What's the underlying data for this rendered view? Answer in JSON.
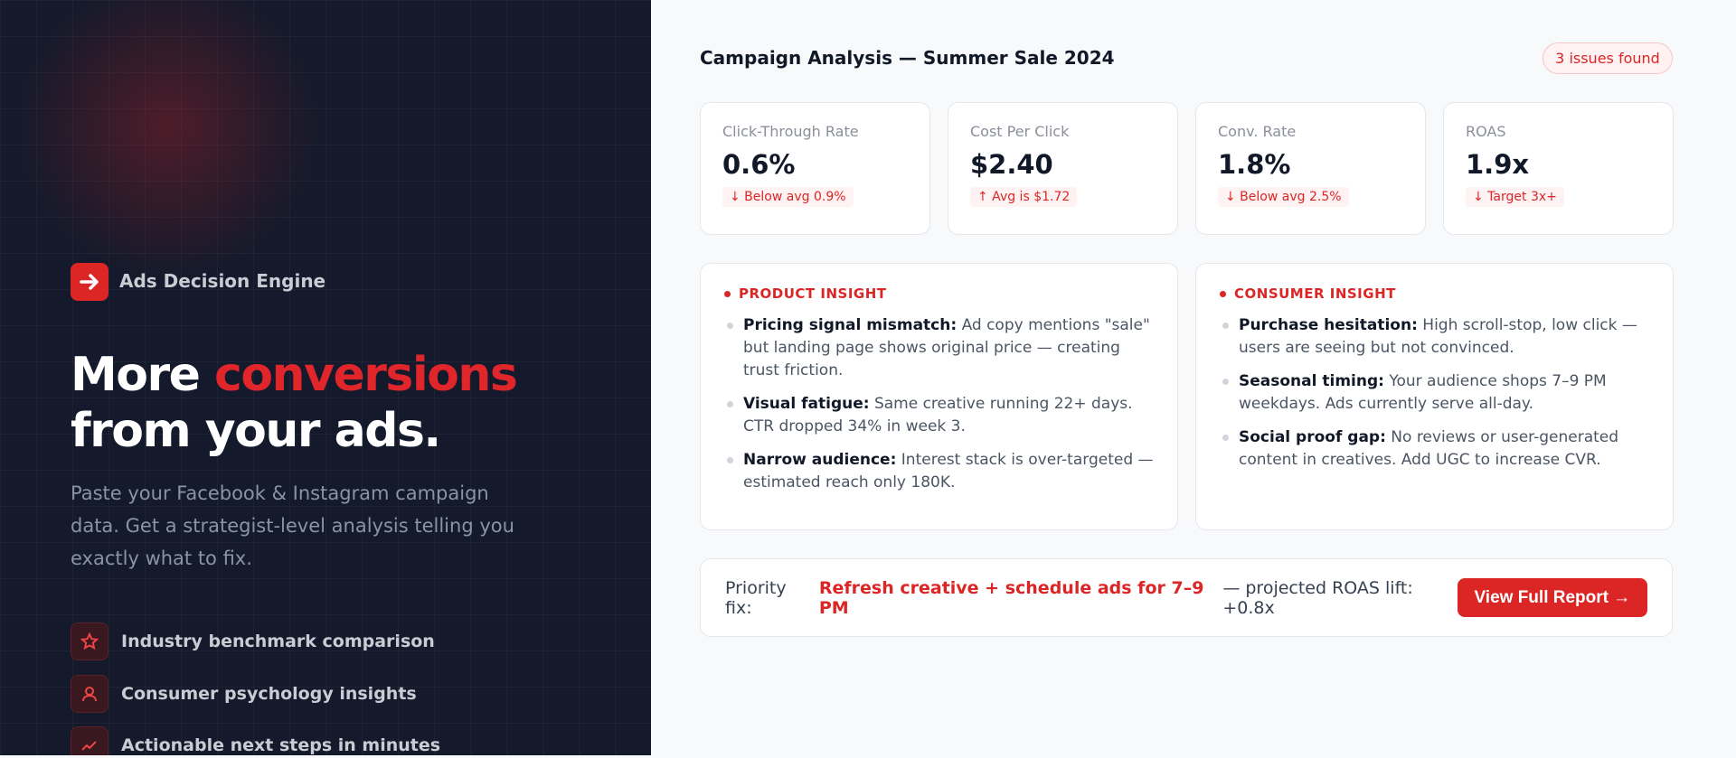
{
  "brand": {
    "name": "Ads Decision Engine"
  },
  "hero": {
    "headline_start": "More",
    "headline_highlight": "conversions",
    "headline_end": "from your ads.",
    "description": "Paste your Facebook & Instagram campaign data. Get a strategist-level analysis telling you exactly what to fix."
  },
  "features": [
    "Industry benchmark comparison",
    "Consumer psychology insights",
    "Actionable next steps in minutes"
  ],
  "report": {
    "title": "Campaign Analysis — Summer Sale 2024",
    "badge": "3 issues found",
    "metrics": [
      {
        "label": "Click-Through Rate",
        "value": "0.6%",
        "delta": "↓ Below avg 0.9%"
      },
      {
        "label": "Cost Per Click",
        "value": "$2.40",
        "delta": "↑ Avg is $1.72"
      },
      {
        "label": "Conv. Rate",
        "value": "1.8%",
        "delta": "↓ Below avg 2.5%"
      },
      {
        "label": "ROAS",
        "value": "1.9x",
        "delta": "↓ Target 3x+"
      }
    ],
    "insights": [
      {
        "heading": "PRODUCT INSIGHT",
        "items": [
          {
            "label": "Pricing signal mismatch:",
            "text": "Ad copy mentions \"sale\" but landing page shows original price — creating trust friction."
          },
          {
            "label": "Visual fatigue:",
            "text": "Same creative running 22+ days. CTR dropped 34% in week 3."
          },
          {
            "label": "Narrow audience:",
            "text": "Interest stack is over-targeted — estimated reach only 180K."
          }
        ]
      },
      {
        "heading": "CONSUMER INSIGHT",
        "items": [
          {
            "label": "Purchase hesitation:",
            "text": "High scroll-stop, low click — users are seeing but not convinced."
          },
          {
            "label": "Seasonal timing:",
            "text": "Your audience shops 7–9 PM weekdays. Ads currently serve all-day."
          },
          {
            "label": "Social proof gap:",
            "text": "No reviews or user-generated content in creatives. Add UGC to increase CVR."
          }
        ]
      }
    ],
    "priority": {
      "prefix": "Priority fix:",
      "highlight": "Refresh creative + schedule ads for 7–9 PM",
      "suffix": "— projected ROAS lift: +0.8x",
      "button": "View Full Report →"
    }
  }
}
